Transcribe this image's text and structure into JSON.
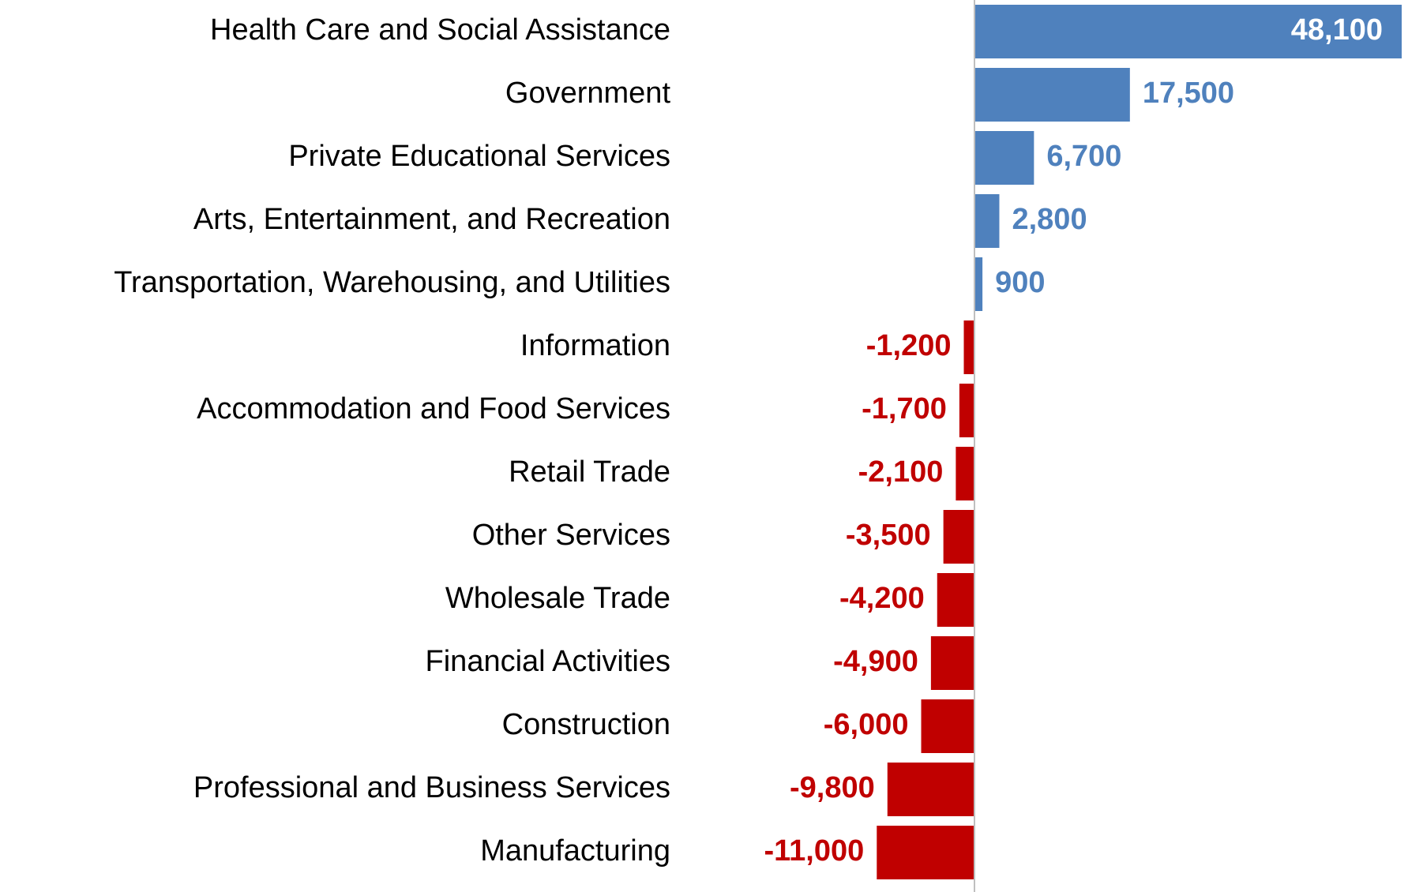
{
  "chart_data": {
    "type": "hbar",
    "categories": [
      "Health Care and Social Assistance",
      "Government",
      "Private Educational Services",
      "Arts, Entertainment, and Recreation",
      "Transportation, Warehousing, and Utilities",
      "Information",
      "Accommodation and Food Services",
      "Retail Trade",
      "Other Services",
      "Wholesale Trade",
      "Financial Activities",
      "Construction",
      "Professional and Business Services",
      "Manufacturing"
    ],
    "values": [
      48100,
      17500,
      6700,
      2800,
      900,
      -1200,
      -1700,
      -2100,
      -3500,
      -4200,
      -4900,
      -6000,
      -9800,
      -11000
    ],
    "value_labels": [
      "48,100",
      "17,500",
      "6,700",
      "2,800",
      "900",
      "-1,200",
      "-1,700",
      "-2,100",
      "-3,500",
      "-4,200",
      "-4,900",
      "-6,000",
      "-9,800",
      "-11,000"
    ],
    "color": "#4f81bd",
    "negative_color": "#c00000"
  }
}
